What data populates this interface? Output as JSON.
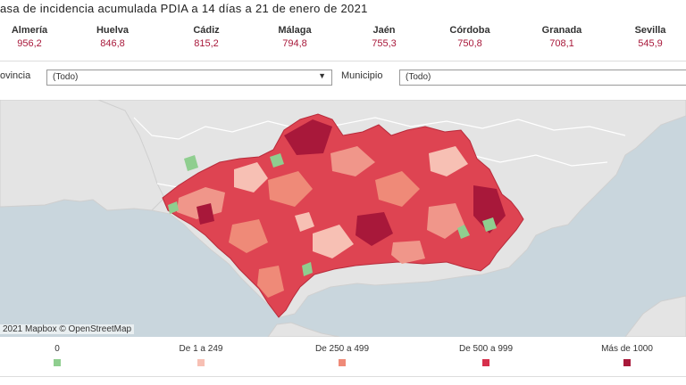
{
  "header": {
    "title": "asa de incidencia acumulada PDIA a 14 días a 21 de enero de 2021"
  },
  "provinces": [
    {
      "name": "Almería",
      "value": "956,2"
    },
    {
      "name": "Huelva",
      "value": "846,8"
    },
    {
      "name": "Cádiz",
      "value": "815,2"
    },
    {
      "name": "Málaga",
      "value": "794,8"
    },
    {
      "name": "Jaén",
      "value": "755,3"
    },
    {
      "name": "Córdoba",
      "value": "750,8"
    },
    {
      "name": "Granada",
      "value": "708,1"
    },
    {
      "name": "Sevilla",
      "value": "545,9"
    }
  ],
  "filters": {
    "provincia_label": "ovincia",
    "provincia_value": "(Todo)",
    "municipio_label": "Municipio",
    "municipio_value": "(Todo)"
  },
  "map": {
    "attribution": "2021 Mapbox © OpenStreetMap",
    "colors": {
      "sea": "#c9d6dd",
      "land": "#e4e4e4",
      "border": "#ffffff"
    }
  },
  "legend": [
    {
      "label": "0",
      "color": "#8fce8f"
    },
    {
      "label": "De 1 a 249",
      "color": "#f7c0b4"
    },
    {
      "label": "De 250 a 499",
      "color": "#ef8a78"
    },
    {
      "label": "De 500 a 999",
      "color": "#d6304c"
    },
    {
      "label": "Más de 1000",
      "color": "#a8183a"
    }
  ]
}
